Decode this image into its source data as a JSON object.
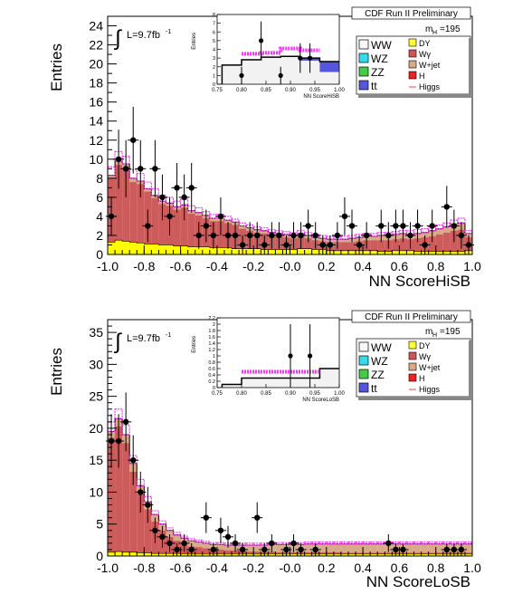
{
  "chart_data": [
    {
      "type": "bar",
      "id": "top",
      "xlabel": "NN ScoreHiSB",
      "ylabel": "Entries",
      "xlim": [
        -1.0,
        1.0
      ],
      "ylim": [
        0,
        25
      ],
      "yticks": [
        0,
        2,
        4,
        6,
        8,
        10,
        12,
        14,
        16,
        18,
        20,
        22,
        24
      ],
      "xticks": [
        "-1.0",
        "-0.8",
        "-0.6",
        "-0.4",
        "-0.2",
        "-0.0",
        "0.2",
        "0.4",
        "0.6",
        "0.8",
        "1.0"
      ],
      "header": "CDF Run II Preliminary",
      "lumi": "L=9.7fb",
      "lumi_sup": "-1",
      "mass": "m",
      "mass_sub": "H",
      "mass_val": "=195",
      "bin_width": 0.04,
      "stack_signal": [
        1.3,
        1.5,
        1.4,
        1.3,
        1.2,
        1.1,
        1.1,
        1.0,
        1.0,
        0.9,
        0.9,
        0.8,
        0.8,
        0.8,
        0.7,
        0.7,
        0.7,
        0.6,
        0.6,
        0.6,
        0.6,
        0.5,
        0.5,
        0.5,
        0.5,
        0.5,
        0.6,
        0.6,
        0.5,
        0.5,
        0.4,
        0.4,
        0.4,
        0.4,
        0.4,
        0.4,
        0.4,
        0.3,
        0.3,
        0.4,
        0.4,
        0.4,
        0.3,
        0.3,
        0.3,
        0.3,
        0.3,
        0.3,
        0.3,
        0.4
      ],
      "stack_tan": [
        0.3,
        0.4,
        0.4,
        0.4,
        0.3,
        0.3,
        0.3,
        0.3,
        0.3,
        0.3,
        0.3,
        0.3,
        0.3,
        0.3,
        0.3,
        0.3,
        0.3,
        0.3,
        0.3,
        0.3,
        0.3,
        0.3,
        0.3,
        0.3,
        0.3,
        0.3,
        0.3,
        0.3,
        0.3,
        0.3,
        0.3,
        0.3,
        0.3,
        0.4,
        0.4,
        0.4,
        0.4,
        0.5,
        0.5,
        0.5,
        0.5,
        0.5,
        0.5,
        0.5,
        0.6,
        0.6,
        0.6,
        0.7,
        0.7,
        0.4
      ],
      "stack_total": [
        8.3,
        9.8,
        9.5,
        8.0,
        7.7,
        6.9,
        6.2,
        5.6,
        5.4,
        5.0,
        5.2,
        4.6,
        4.4,
        4.1,
        3.8,
        3.8,
        3.6,
        3.4,
        3.0,
        2.8,
        2.6,
        2.5,
        2.3,
        2.2,
        2.1,
        2.0,
        2.2,
        2.0,
        1.8,
        1.7,
        1.6,
        1.6,
        1.6,
        1.7,
        1.8,
        1.9,
        1.9,
        2.0,
        2.0,
        2.1,
        2.2,
        2.1,
        2.2,
        2.3,
        2.5,
        2.7,
        2.9,
        3.2,
        3.3,
        2.2
      ],
      "higgs_band": [
        9.2,
        10.8,
        10.3,
        8.9,
        8.5,
        7.6,
        6.9,
        6.2,
        6.0,
        5.6,
        5.8,
        5.1,
        4.9,
        4.5,
        4.2,
        4.2,
        4.0,
        3.7,
        3.3,
        3.1,
        2.9,
        2.8,
        2.6,
        2.5,
        2.4,
        2.3,
        2.5,
        2.3,
        2.1,
        2.0,
        1.9,
        1.9,
        1.9,
        2.0,
        2.1,
        2.2,
        2.2,
        2.3,
        2.3,
        2.4,
        2.5,
        2.5,
        2.6,
        2.7,
        2.9,
        3.1,
        3.3,
        3.6,
        3.8,
        2.5
      ],
      "points": [
        {
          "x": -0.98,
          "y": 4.0,
          "e": 2.0
        },
        {
          "x": -0.94,
          "y": 10.0,
          "e": 3.1
        },
        {
          "x": -0.9,
          "y": 9.0,
          "e": 3.0
        },
        {
          "x": -0.86,
          "y": 12.0,
          "e": 3.5
        },
        {
          "x": -0.82,
          "y": 9.0,
          "e": 3.0
        },
        {
          "x": -0.78,
          "y": 3.0,
          "e": 1.7
        },
        {
          "x": -0.74,
          "y": 9.0,
          "e": 3.0
        },
        {
          "x": -0.7,
          "y": 6.0,
          "e": 2.4
        },
        {
          "x": -0.66,
          "y": 4.0,
          "e": 2.0
        },
        {
          "x": -0.62,
          "y": 7.0,
          "e": 2.6
        },
        {
          "x": -0.58,
          "y": 6.0,
          "e": 2.4
        },
        {
          "x": -0.54,
          "y": 7.0,
          "e": 2.6
        },
        {
          "x": -0.5,
          "y": 2.0,
          "e": 1.4
        },
        {
          "x": -0.46,
          "y": 3.0,
          "e": 1.7
        },
        {
          "x": -0.42,
          "y": 2.0,
          "e": 1.4
        },
        {
          "x": -0.38,
          "y": 4.0,
          "e": 2.0
        },
        {
          "x": -0.34,
          "y": 2.0,
          "e": 1.4
        },
        {
          "x": -0.3,
          "y": 2.0,
          "e": 1.4
        },
        {
          "x": -0.26,
          "y": 1.0,
          "e": 1.0
        },
        {
          "x": -0.22,
          "y": 2.0,
          "e": 1.4
        },
        {
          "x": -0.18,
          "y": 2.0,
          "e": 1.4
        },
        {
          "x": -0.14,
          "y": 1.0,
          "e": 1.0
        },
        {
          "x": -0.1,
          "y": 2.0,
          "e": 1.4
        },
        {
          "x": -0.06,
          "y": 2.0,
          "e": 1.4
        },
        {
          "x": -0.02,
          "y": 1.0,
          "e": 1.0
        },
        {
          "x": 0.02,
          "y": 2.0,
          "e": 1.4
        },
        {
          "x": 0.06,
          "y": 2.0,
          "e": 1.4
        },
        {
          "x": 0.1,
          "y": 3.0,
          "e": 1.7
        },
        {
          "x": 0.14,
          "y": 2.0,
          "e": 1.4
        },
        {
          "x": 0.18,
          "y": 1.0,
          "e": 1.0
        },
        {
          "x": 0.22,
          "y": 1.0,
          "e": 1.0
        },
        {
          "x": 0.26,
          "y": 2.0,
          "e": 1.4
        },
        {
          "x": 0.3,
          "y": 4.0,
          "e": 2.0
        },
        {
          "x": 0.34,
          "y": 3.0,
          "e": 1.7
        },
        {
          "x": 0.38,
          "y": 1.0,
          "e": 1.0
        },
        {
          "x": 0.42,
          "y": 2.0,
          "e": 1.4
        },
        {
          "x": 0.5,
          "y": 3.0,
          "e": 1.7
        },
        {
          "x": 0.54,
          "y": 2.0,
          "e": 1.4
        },
        {
          "x": 0.58,
          "y": 3.0,
          "e": 1.7
        },
        {
          "x": 0.62,
          "y": 3.0,
          "e": 1.7
        },
        {
          "x": 0.66,
          "y": 2.0,
          "e": 1.4
        },
        {
          "x": 0.7,
          "y": 3.0,
          "e": 1.7
        },
        {
          "x": 0.74,
          "y": 1.0,
          "e": 1.0
        },
        {
          "x": 0.78,
          "y": 3.0,
          "e": 1.7
        },
        {
          "x": 0.86,
          "y": 5.0,
          "e": 2.2
        },
        {
          "x": 0.9,
          "y": 3.0,
          "e": 1.7
        },
        {
          "x": 0.94,
          "y": 2.0,
          "e": 1.4
        },
        {
          "x": 0.98,
          "y": 1.0,
          "e": 1.0
        }
      ],
      "inset": {
        "xlabel": "NN ScoreHiSB",
        "ylabel": "Entries",
        "xlim": [
          0.75,
          1.0
        ],
        "ylim": [
          0,
          8
        ],
        "xticks": [
          "0.75",
          "0.80",
          "0.85",
          "0.90",
          "0.95",
          "1.00"
        ],
        "yticks": [
          "0",
          "1",
          "2",
          "3",
          "4",
          "5",
          "6",
          "7",
          "8"
        ],
        "bin_width": 0.04,
        "bins_x": [
          0.78,
          0.82,
          0.86,
          0.9,
          0.94,
          0.98
        ],
        "stack_total": [
          2.2,
          2.8,
          3.1,
          3.2,
          3.0,
          2.6
        ],
        "stack_blue": [
          0.0,
          0.0,
          0.0,
          0.0,
          0.3,
          1.2
        ],
        "higgs_band": [
          0.0,
          3.5,
          3.6,
          4.1,
          3.9,
          0.0
        ],
        "points": [
          {
            "x": 0.8,
            "y": 1.0,
            "e": 1.0
          },
          {
            "x": 0.84,
            "y": 5.0,
            "e": 2.2
          },
          {
            "x": 0.88,
            "y": 1.0,
            "e": 1.0
          },
          {
            "x": 0.92,
            "y": 3.0,
            "e": 1.7
          },
          {
            "x": 0.94,
            "y": 3.0,
            "e": 1.7
          }
        ]
      }
    },
    {
      "type": "bar",
      "id": "bottom",
      "xlabel": "NN ScoreLoSB",
      "ylabel": "Entries",
      "xlim": [
        -1.0,
        1.0
      ],
      "ylim": [
        0,
        37
      ],
      "yticks": [
        0,
        5,
        10,
        15,
        20,
        25,
        30,
        35
      ],
      "xticks": [
        "-1.0",
        "-0.8",
        "-0.6",
        "-0.4",
        "-0.2",
        "-0.0",
        "0.2",
        "0.4",
        "0.6",
        "0.8",
        "1.0"
      ],
      "header": "CDF Run II Preliminary",
      "lumi": "L=9.7fb",
      "lumi_sup": "-1",
      "mass": "m",
      "mass_sub": "H",
      "mass_val": "=195",
      "bin_width": 0.04,
      "stack_signal": [
        0.6,
        0.7,
        0.6,
        0.6,
        0.5,
        0.5,
        0.4,
        0.4,
        0.4,
        0.4,
        0.3,
        0.3,
        0.3,
        0.3,
        0.3,
        0.3,
        0.3,
        0.3,
        0.3,
        0.3,
        0.3,
        0.3,
        0.3,
        0.3,
        0.3,
        0.3,
        0.3,
        0.3,
        0.3,
        0.3,
        0.3,
        0.3,
        0.3,
        0.3,
        0.3,
        0.3,
        0.3,
        0.3,
        0.3,
        0.3,
        0.3,
        0.3,
        0.3,
        0.3,
        0.3,
        0.3,
        0.3,
        0.3,
        0.3,
        0.3
      ],
      "stack_tan": [
        1.0,
        1.2,
        1.3,
        1.3,
        1.2,
        1.2,
        1.1,
        1.0,
        1.0,
        0.9,
        0.9,
        0.9,
        0.8,
        0.8,
        0.8,
        0.8,
        0.8,
        0.8,
        0.9,
        1.0,
        1.0,
        1.1,
        1.1,
        1.2,
        1.2,
        1.2,
        1.2,
        1.3,
        1.3,
        1.3,
        1.3,
        1.3,
        1.4,
        1.4,
        1.4,
        1.4,
        1.4,
        1.4,
        1.4,
        1.4,
        1.4,
        1.4,
        1.4,
        1.4,
        1.4,
        1.4,
        1.4,
        1.4,
        1.4,
        1.4
      ],
      "stack_total": [
        19.5,
        21.5,
        19.0,
        14.5,
        11.0,
        8.5,
        6.5,
        5.0,
        4.0,
        3.3,
        2.8,
        2.4,
        2.2,
        2.0,
        1.8,
        1.8,
        1.7,
        1.7,
        1.7,
        1.7,
        1.7,
        1.7,
        1.8,
        1.8,
        1.8,
        1.8,
        1.8,
        1.9,
        1.9,
        1.9,
        1.9,
        1.9,
        1.9,
        1.9,
        1.9,
        1.9,
        1.9,
        1.9,
        1.9,
        1.9,
        1.9,
        1.9,
        1.9,
        1.9,
        1.9,
        1.9,
        1.9,
        1.9,
        1.9,
        1.9
      ],
      "higgs_band": [
        21.0,
        23.0,
        20.5,
        15.7,
        12.0,
        9.3,
        7.1,
        5.5,
        4.4,
        3.7,
        3.1,
        2.7,
        2.5,
        2.3,
        2.1,
        2.1,
        2.0,
        2.0,
        2.0,
        2.0,
        2.0,
        2.0,
        2.1,
        2.1,
        2.1,
        2.1,
        2.1,
        2.2,
        2.2,
        2.2,
        2.2,
        2.2,
        2.2,
        2.2,
        2.2,
        2.2,
        2.2,
        2.2,
        2.2,
        2.2,
        2.2,
        2.2,
        2.2,
        2.2,
        2.2,
        2.2,
        2.2,
        2.2,
        2.2,
        2.2
      ],
      "points": [
        {
          "x": -0.98,
          "y": 18.0,
          "e": 4.2
        },
        {
          "x": -0.94,
          "y": 18.0,
          "e": 4.2
        },
        {
          "x": -0.9,
          "y": 21.0,
          "e": 4.6
        },
        {
          "x": -0.86,
          "y": 15.0,
          "e": 3.9
        },
        {
          "x": -0.82,
          "y": 10.0,
          "e": 3.2
        },
        {
          "x": -0.78,
          "y": 8.0,
          "e": 2.8
        },
        {
          "x": -0.74,
          "y": 4.0,
          "e": 2.0
        },
        {
          "x": -0.7,
          "y": 3.0,
          "e": 1.7
        },
        {
          "x": -0.66,
          "y": 2.0,
          "e": 1.4
        },
        {
          "x": -0.62,
          "y": 1.0,
          "e": 1.0
        },
        {
          "x": -0.58,
          "y": 2.0,
          "e": 1.4
        },
        {
          "x": -0.54,
          "y": 1.0,
          "e": 1.0
        },
        {
          "x": -0.46,
          "y": 6.0,
          "e": 2.4
        },
        {
          "x": -0.42,
          "y": 1.0,
          "e": 1.0
        },
        {
          "x": -0.38,
          "y": 4.0,
          "e": 2.0
        },
        {
          "x": -0.34,
          "y": 3.0,
          "e": 1.7
        },
        {
          "x": -0.3,
          "y": 2.0,
          "e": 1.4
        },
        {
          "x": -0.26,
          "y": 1.0,
          "e": 1.0
        },
        {
          "x": -0.18,
          "y": 6.0,
          "e": 2.4
        },
        {
          "x": -0.14,
          "y": 1.0,
          "e": 1.0
        },
        {
          "x": -0.1,
          "y": 2.0,
          "e": 1.4
        },
        {
          "x": -0.02,
          "y": 1.0,
          "e": 1.0
        },
        {
          "x": 0.02,
          "y": 2.0,
          "e": 1.4
        },
        {
          "x": 0.06,
          "y": 1.0,
          "e": 1.0
        },
        {
          "x": 0.14,
          "y": 1.0,
          "e": 1.0
        },
        {
          "x": 0.54,
          "y": 2.0,
          "e": 1.4
        },
        {
          "x": 0.58,
          "y": 1.0,
          "e": 1.0
        },
        {
          "x": 0.62,
          "y": 1.0,
          "e": 1.0
        },
        {
          "x": 0.86,
          "y": 1.0,
          "e": 1.0
        },
        {
          "x": 0.9,
          "y": 1.0,
          "e": 1.0
        },
        {
          "x": 0.94,
          "y": 1.0,
          "e": 1.0
        }
      ],
      "inset": {
        "xlabel": "NN ScoreLoSB",
        "ylabel": "Entries",
        "xlim": [
          0.75,
          1.0
        ],
        "ylim": [
          0,
          2.2
        ],
        "xticks": [
          "0.75",
          "0.80",
          "0.85",
          "0.90",
          "0.95",
          "1.00"
        ],
        "yticks": [
          "0",
          "0.2",
          "0.4",
          "0.6",
          "0.8",
          "1",
          "1.2",
          "1.4",
          "1.6",
          "1.8",
          "2",
          "2.2"
        ],
        "bin_width": 0.04,
        "bins_x": [
          0.78,
          0.82,
          0.86,
          0.9,
          0.94,
          0.98
        ],
        "stack_total": [
          0.1,
          0.3,
          0.3,
          0.3,
          0.3,
          0.6
        ],
        "stack_blue": [
          0,
          0,
          0,
          0,
          0,
          0
        ],
        "higgs_band": [
          0.0,
          0.5,
          0.5,
          0.5,
          0.5,
          0.0
        ],
        "points": [
          {
            "x": 0.9,
            "y": 1.0,
            "e": 1.0
          },
          {
            "x": 0.94,
            "y": 1.0,
            "e": 1.0
          }
        ]
      }
    }
  ],
  "legend": {
    "left": [
      {
        "label": "WW",
        "color": "#f7f7f7"
      },
      {
        "label": "WZ",
        "color": "#33ddee"
      },
      {
        "label": "ZZ",
        "color": "#44cc44"
      },
      {
        "label": "tt",
        "color": "#5555dd"
      }
    ],
    "right": [
      {
        "label": "DY",
        "color": "#ffff33"
      },
      {
        "label": "Wγ",
        "color": "#cc5555"
      },
      {
        "label": "W+jet",
        "color": "#d8aa88"
      },
      {
        "label": "H",
        "color": "#ee2222"
      },
      {
        "label": "Higgs",
        "color": "#ee4444"
      }
    ]
  },
  "colors": {
    "signal": "#ffff00",
    "wgamma": "#cc5c5c",
    "wjet": "#d8aa88",
    "ww": "#f2f2f2",
    "ttbar": "#5555dd",
    "band": "#ff33ff"
  }
}
